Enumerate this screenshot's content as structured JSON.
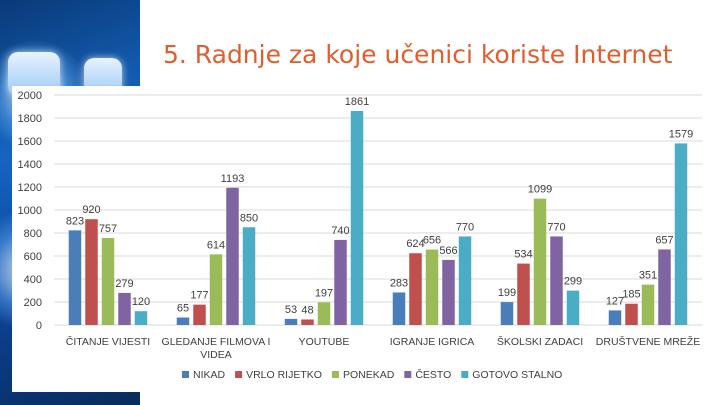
{
  "title": "5. Radnje za koje učenici koriste Internet",
  "chart_data": {
    "type": "bar",
    "title": "",
    "xlabel": "",
    "ylabel": "",
    "ylim": [
      0,
      2000
    ],
    "yticks": [
      0,
      200,
      400,
      600,
      800,
      1000,
      1200,
      1400,
      1600,
      1800,
      2000
    ],
    "grid": true,
    "legend_position": "bottom",
    "categories": [
      [
        "ČITANJE VIJESTI"
      ],
      [
        "GLEDANJE FILMOVA I",
        "VIDEA"
      ],
      [
        "YOUTUBE"
      ],
      [
        "IGRANJE IGRICA"
      ],
      [
        "ŠKOLSKI ZADACI"
      ],
      [
        "DRUŠTVENE MREŽE"
      ]
    ],
    "series": [
      {
        "name": "NIKAD",
        "color": "#4a7ebb",
        "values": [
          823,
          65,
          53,
          283,
          199,
          127
        ]
      },
      {
        "name": "VRLO RIJETKO",
        "color": "#c0504d",
        "values": [
          920,
          177,
          48,
          624,
          534,
          185
        ]
      },
      {
        "name": "PONEKAD",
        "color": "#9bbb59",
        "values": [
          757,
          614,
          197,
          656,
          1099,
          351
        ]
      },
      {
        "name": "ČESTO",
        "color": "#8064a2",
        "values": [
          279,
          1193,
          740,
          566,
          770,
          657
        ]
      },
      {
        "name": "GOTOVO STALNO",
        "color": "#4bacc6",
        "values": [
          120,
          850,
          1861,
          770,
          299,
          1579
        ]
      }
    ]
  }
}
